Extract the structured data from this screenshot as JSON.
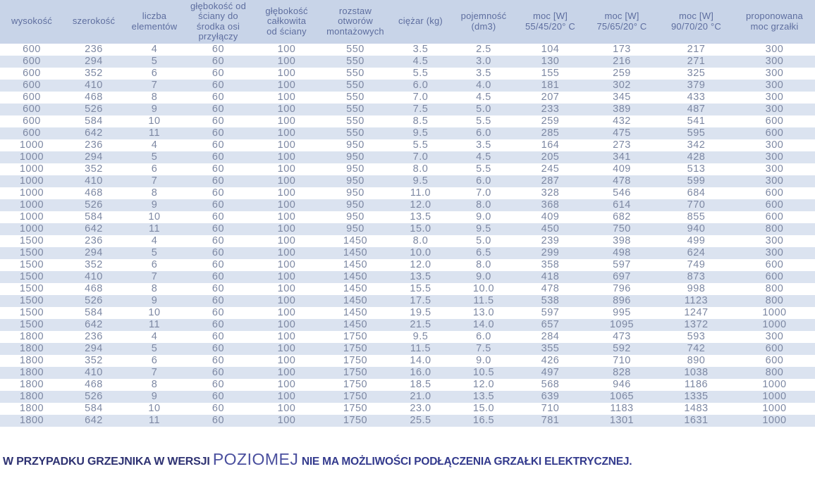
{
  "colors": {
    "header_bg": "#c8d4e8",
    "stripe_bg": "#dbe3f0",
    "header_text": "#5e6e9f",
    "cell_text": "#7d88a3",
    "footnote_prefix": "#2e3272",
    "footnote_highlight": "#4a4f9e",
    "footnote_suffix": "#333a8d"
  },
  "table": {
    "columns": [
      {
        "key": "wysokosc",
        "label": "wysokość"
      },
      {
        "key": "szerokosc",
        "label": "szerokość"
      },
      {
        "key": "liczba-elementow",
        "label": "liczba\nelementów"
      },
      {
        "key": "glebokosc-od-sciany",
        "label": "głębokość od\nściany do\nśrodka osi\nprzyłączy"
      },
      {
        "key": "glebokosc-calkowita",
        "label": "głębokość\ncałkowita\nod ściany"
      },
      {
        "key": "rozstaw-otworow",
        "label": "rozstaw\notworów\nmontażowych"
      },
      {
        "key": "ciezar",
        "label": "ciężar (kg)"
      },
      {
        "key": "pojemnosc",
        "label": "pojemność\n(dm3)"
      },
      {
        "key": "moc-55-45-20",
        "label": "moc [W]\n55/45/20° C"
      },
      {
        "key": "moc-75-65-20",
        "label": "moc [W]\n75/65/20° C"
      },
      {
        "key": "moc-90-70-20",
        "label": "moc [W]\n90/70/20 °C"
      },
      {
        "key": "proponowana-moc-grzalki",
        "label": "proponowana\nmoc grzałki"
      }
    ],
    "rows": [
      [
        "600",
        "236",
        "4",
        "60",
        "100",
        "550",
        "3.5",
        "2.5",
        "104",
        "173",
        "217",
        "300"
      ],
      [
        "600",
        "294",
        "5",
        "60",
        "100",
        "550",
        "4.5",
        "3.0",
        "130",
        "216",
        "271",
        "300"
      ],
      [
        "600",
        "352",
        "6",
        "60",
        "100",
        "550",
        "5.5",
        "3.5",
        "155",
        "259",
        "325",
        "300"
      ],
      [
        "600",
        "410",
        "7",
        "60",
        "100",
        "550",
        "6.0",
        "4.0",
        "181",
        "302",
        "379",
        "300"
      ],
      [
        "600",
        "468",
        "8",
        "60",
        "100",
        "550",
        "7.0",
        "4.5",
        "207",
        "345",
        "433",
        "300"
      ],
      [
        "600",
        "526",
        "9",
        "60",
        "100",
        "550",
        "7.5",
        "5.0",
        "233",
        "389",
        "487",
        "300"
      ],
      [
        "600",
        "584",
        "10",
        "60",
        "100",
        "550",
        "8.5",
        "5.5",
        "259",
        "432",
        "541",
        "600"
      ],
      [
        "600",
        "642",
        "11",
        "60",
        "100",
        "550",
        "9.5",
        "6.0",
        "285",
        "475",
        "595",
        "600"
      ],
      [
        "1000",
        "236",
        "4",
        "60",
        "100",
        "950",
        "5.5",
        "3.5",
        "164",
        "273",
        "342",
        "300"
      ],
      [
        "1000",
        "294",
        "5",
        "60",
        "100",
        "950",
        "7.0",
        "4.5",
        "205",
        "341",
        "428",
        "300"
      ],
      [
        "1000",
        "352",
        "6",
        "60",
        "100",
        "950",
        "8.0",
        "5.5",
        "245",
        "409",
        "513",
        "300"
      ],
      [
        "1000",
        "410",
        "7",
        "60",
        "100",
        "950",
        "9.5",
        "6.0",
        "287",
        "478",
        "599",
        "300"
      ],
      [
        "1000",
        "468",
        "8",
        "60",
        "100",
        "950",
        "11.0",
        "7.0",
        "328",
        "546",
        "684",
        "600"
      ],
      [
        "1000",
        "526",
        "9",
        "60",
        "100",
        "950",
        "12.0",
        "8.0",
        "368",
        "614",
        "770",
        "600"
      ],
      [
        "1000",
        "584",
        "10",
        "60",
        "100",
        "950",
        "13.5",
        "9.0",
        "409",
        "682",
        "855",
        "600"
      ],
      [
        "1000",
        "642",
        "11",
        "60",
        "100",
        "950",
        "15.0",
        "9.5",
        "450",
        "750",
        "940",
        "800"
      ],
      [
        "1500",
        "236",
        "4",
        "60",
        "100",
        "1450",
        "8.0",
        "5.0",
        "239",
        "398",
        "499",
        "300"
      ],
      [
        "1500",
        "294",
        "5",
        "60",
        "100",
        "1450",
        "10.0",
        "6.5",
        "299",
        "498",
        "624",
        "300"
      ],
      [
        "1500",
        "352",
        "6",
        "60",
        "100",
        "1450",
        "12.0",
        "8.0",
        "358",
        "597",
        "749",
        "600"
      ],
      [
        "1500",
        "410",
        "7",
        "60",
        "100",
        "1450",
        "13.5",
        "9.0",
        "418",
        "697",
        "873",
        "600"
      ],
      [
        "1500",
        "468",
        "8",
        "60",
        "100",
        "1450",
        "15.5",
        "10.0",
        "478",
        "796",
        "998",
        "800"
      ],
      [
        "1500",
        "526",
        "9",
        "60",
        "100",
        "1450",
        "17.5",
        "11.5",
        "538",
        "896",
        "1123",
        "800"
      ],
      [
        "1500",
        "584",
        "10",
        "60",
        "100",
        "1450",
        "19.5",
        "13.0",
        "597",
        "995",
        "1247",
        "1000"
      ],
      [
        "1500",
        "642",
        "11",
        "60",
        "100",
        "1450",
        "21.5",
        "14.0",
        "657",
        "1095",
        "1372",
        "1000"
      ],
      [
        "1800",
        "236",
        "4",
        "60",
        "100",
        "1750",
        "9.5",
        "6.0",
        "284",
        "473",
        "593",
        "300"
      ],
      [
        "1800",
        "294",
        "5",
        "60",
        "100",
        "1750",
        "11.5",
        "7.5",
        "355",
        "592",
        "742",
        "600"
      ],
      [
        "1800",
        "352",
        "6",
        "60",
        "100",
        "1750",
        "14.0",
        "9.0",
        "426",
        "710",
        "890",
        "600"
      ],
      [
        "1800",
        "410",
        "7",
        "60",
        "100",
        "1750",
        "16.0",
        "10.5",
        "497",
        "828",
        "1038",
        "800"
      ],
      [
        "1800",
        "468",
        "8",
        "60",
        "100",
        "1750",
        "18.5",
        "12.0",
        "568",
        "946",
        "1186",
        "1000"
      ],
      [
        "1800",
        "526",
        "9",
        "60",
        "100",
        "1750",
        "21.0",
        "13.5",
        "639",
        "1065",
        "1335",
        "1000"
      ],
      [
        "1800",
        "584",
        "10",
        "60",
        "100",
        "1750",
        "23.0",
        "15.0",
        "710",
        "1183",
        "1483",
        "1000"
      ],
      [
        "1800",
        "642",
        "11",
        "60",
        "100",
        "1750",
        "25.5",
        "16.5",
        "781",
        "1301",
        "1631",
        "1000"
      ]
    ]
  },
  "footnote": {
    "prefix": "W PRZYPADKU GRZEJNIKA W WERSJI ",
    "highlight": "POZIOMEJ",
    "suffix": " NIE MA MOŻLIWOŚCI PODŁĄCZENIA GRZAŁKI ELEKTRYCZNEJ."
  }
}
